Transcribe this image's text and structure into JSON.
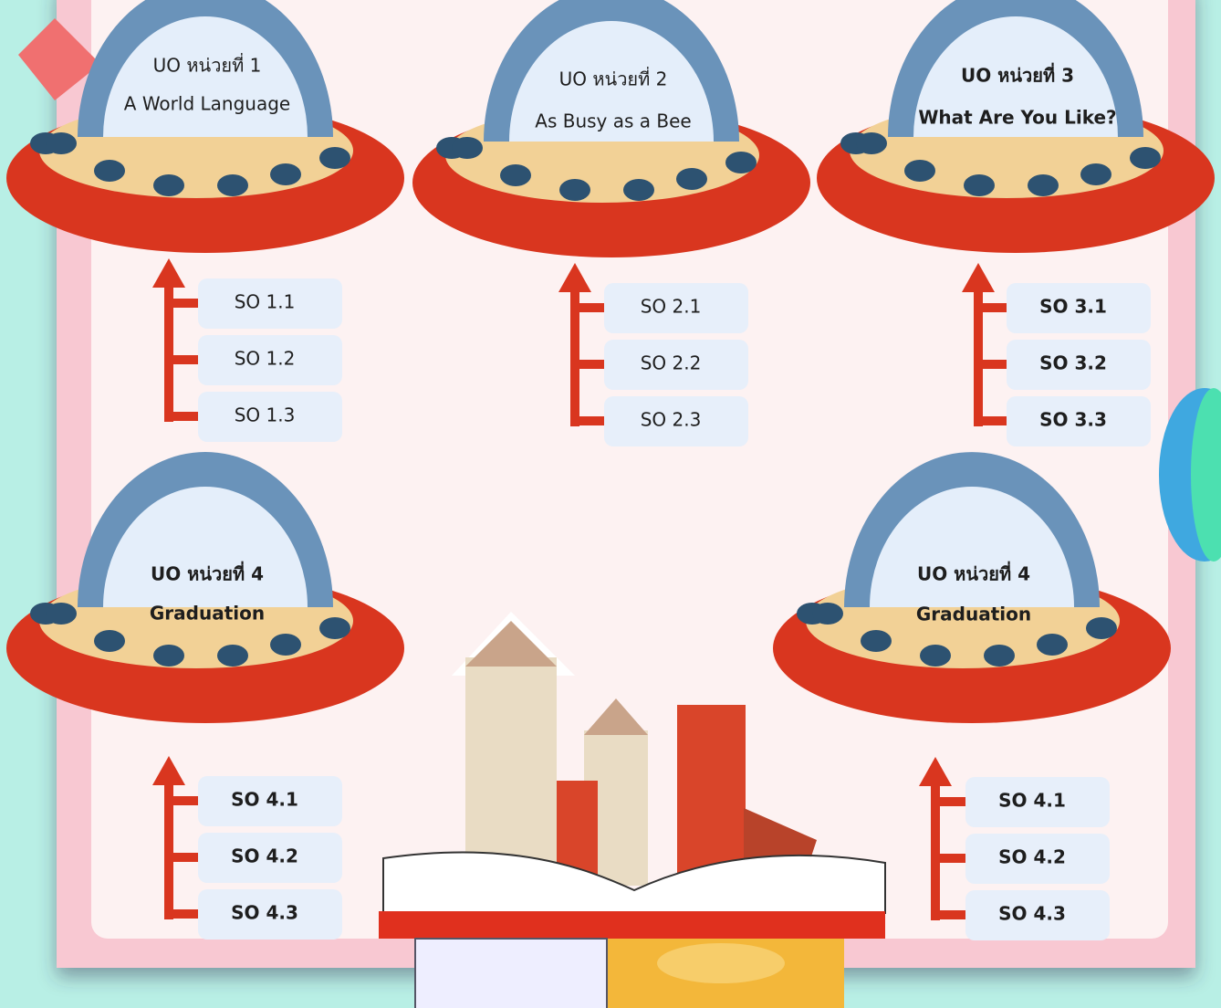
{
  "units": [
    {
      "title": "UO หน่วยที่ 1",
      "subtitle": "A World Language",
      "items": [
        "SO 1.1",
        "SO 1.2",
        "SO 1.3"
      ]
    },
    {
      "title": "UO หน่วยที่ 2",
      "subtitle": "As Busy as a Bee",
      "items": [
        "SO 2.1",
        "SO 2.2",
        "SO 2.3"
      ]
    },
    {
      "title": "UO หน่วยที่ 3",
      "subtitle": "What Are You Like?",
      "items": [
        "SO 3.1",
        "SO 3.2",
        "SO 3.3"
      ]
    },
    {
      "title": "UO หน่วยที่ 4",
      "subtitle": "Graduation",
      "items": [
        "SO 4.1",
        "SO 4.2",
        "SO 4.3"
      ]
    },
    {
      "title": "UO หน่วยที่ 4",
      "subtitle": "Graduation",
      "items": [
        "SO 4.1",
        "SO 4.2",
        "SO 4.3"
      ]
    }
  ]
}
